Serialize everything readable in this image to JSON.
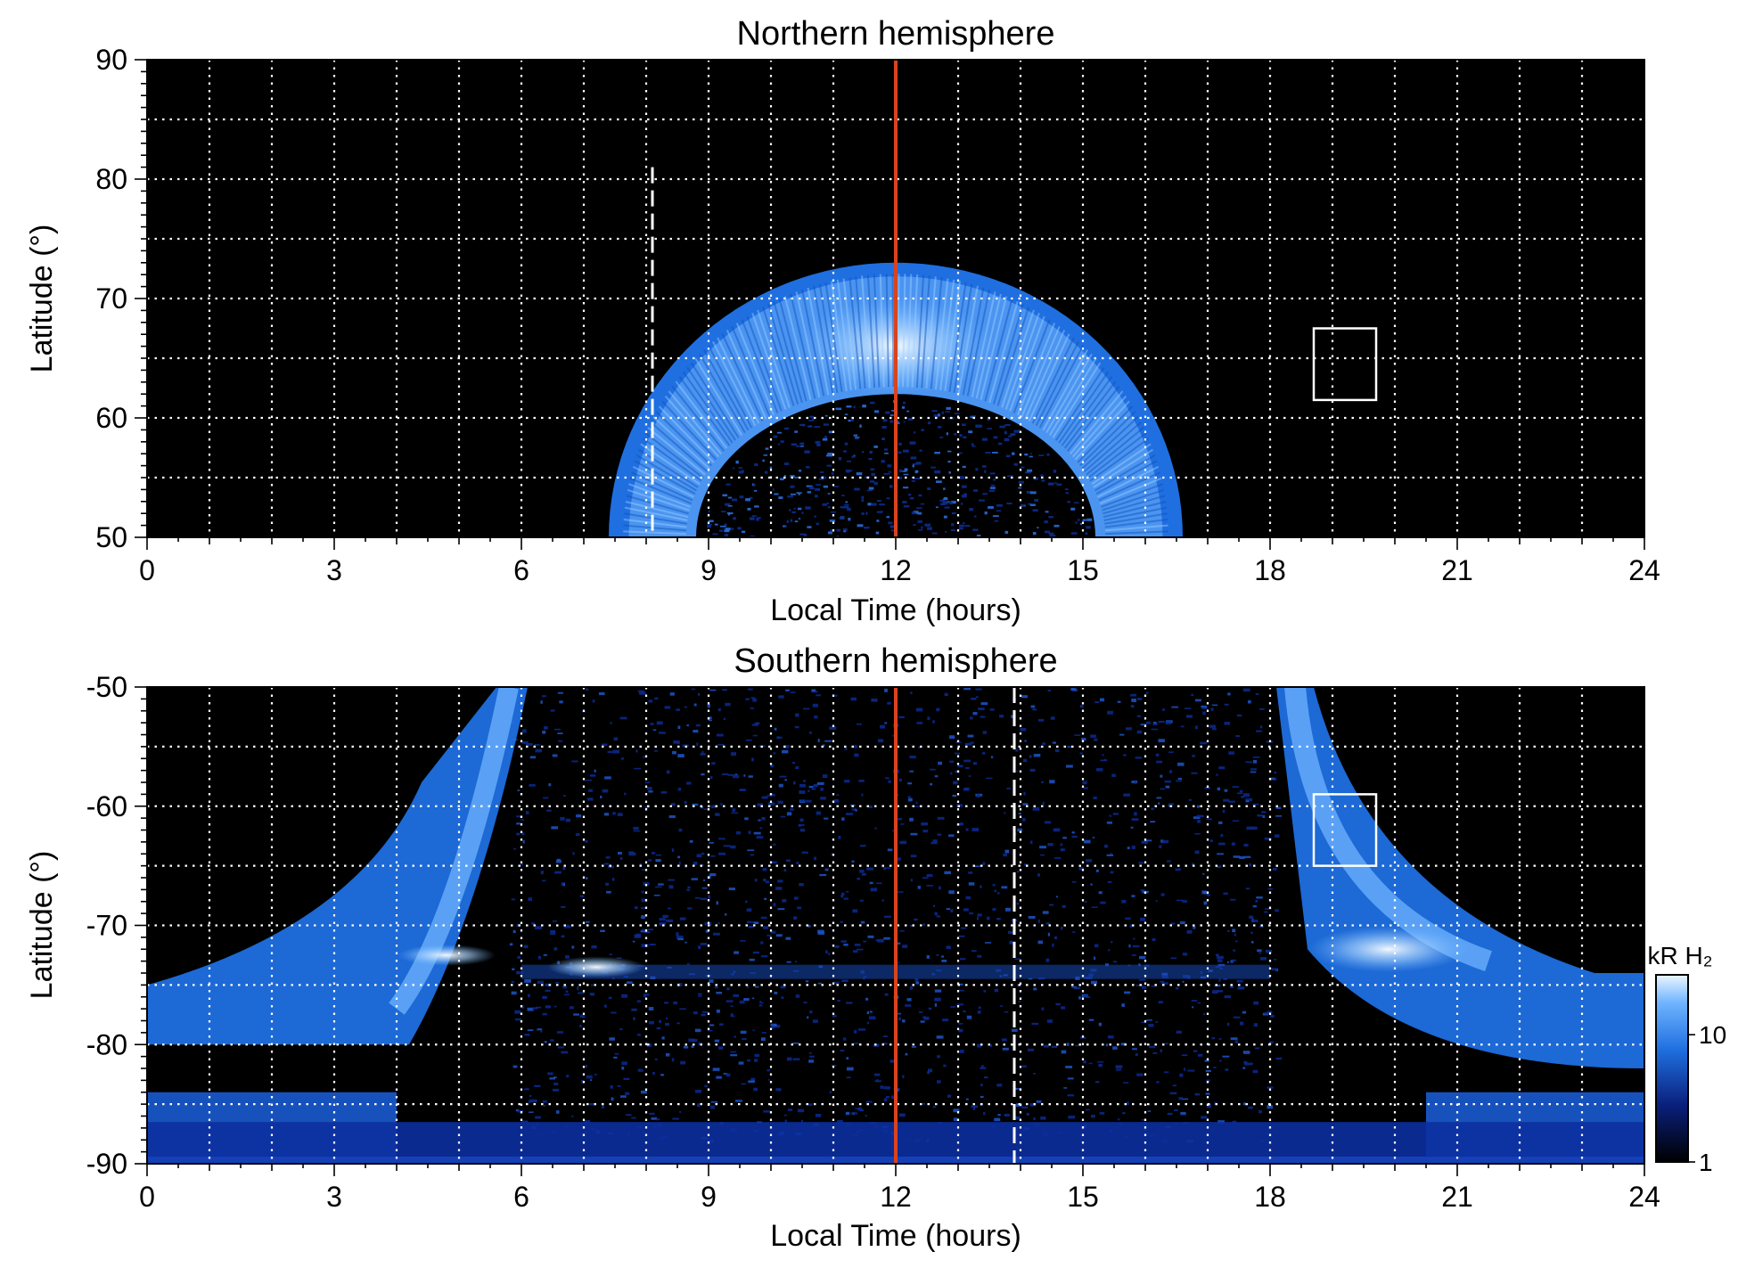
{
  "colors": {
    "background": "#000000",
    "auroral_mid": "#1f6fe0",
    "auroral_bright": "#6fb4ff",
    "auroral_peak": "#d6ecff",
    "noon_line": "#d9431e",
    "grid": "#ffffff"
  },
  "chart_data": [
    {
      "type": "heatmap",
      "title": "Northern hemisphere",
      "xlabel": "Local Time (hours)",
      "ylabel": "Latitude (°)",
      "xlim": [
        0,
        24
      ],
      "ylim": [
        50,
        90
      ],
      "xticks": [
        0,
        3,
        6,
        9,
        12,
        15,
        18,
        21,
        24
      ],
      "yticks": [
        50,
        60,
        70,
        80,
        90
      ],
      "xtick_labels": [
        "0",
        "3",
        "6",
        "9",
        "12",
        "15",
        "18",
        "21",
        "24"
      ],
      "ytick_labels": [
        "50",
        "60",
        "70",
        "80",
        "90"
      ],
      "x_grid_step": 1,
      "y_grid_step": 5,
      "grid": true,
      "noon_line_x": 12,
      "dashed_line_x": 8.1,
      "dashed_line_ylim": [
        50,
        81
      ],
      "box": {
        "x": [
          18.7,
          19.7
        ],
        "y": [
          61.5,
          67.5
        ]
      },
      "auroral_oval": {
        "center_local_time": 12,
        "outer_half_width_at_50": 4.6,
        "inner_half_width_at_50": 3.2,
        "outer_top_latitude": 73,
        "inner_top_latitude": 62
      }
    },
    {
      "type": "heatmap",
      "title": "Southern hemisphere",
      "xlabel": "Local Time (hours)",
      "ylabel": "Latitude (°)",
      "xlim": [
        0,
        24
      ],
      "ylim": [
        -90,
        -50
      ],
      "xticks": [
        0,
        3,
        6,
        9,
        12,
        15,
        18,
        21,
        24
      ],
      "yticks": [
        -90,
        -80,
        -70,
        -60,
        -50
      ],
      "xtick_labels": [
        "0",
        "3",
        "6",
        "9",
        "12",
        "15",
        "18",
        "21",
        "24"
      ],
      "ytick_labels": [
        "-90",
        "-80",
        "-70",
        "-60",
        "-50"
      ],
      "x_grid_step": 1,
      "y_grid_step": 5,
      "grid": true,
      "noon_line_x": 12,
      "dashed_line_x": 13.9,
      "dashed_line_ylim": [
        -90,
        -50
      ],
      "box": {
        "x": [
          18.7,
          19.7
        ],
        "y": [
          -65,
          -59
        ]
      },
      "bright_spots": [
        {
          "x": 7.2,
          "y": -73.5
        },
        {
          "x": 19.9,
          "y": -72
        },
        {
          "x": 4.8,
          "y": -72.5
        }
      ],
      "colorbar": {
        "label": "kR H₂",
        "tick_labels": [
          "1",
          "10"
        ],
        "scale": "log"
      }
    }
  ]
}
